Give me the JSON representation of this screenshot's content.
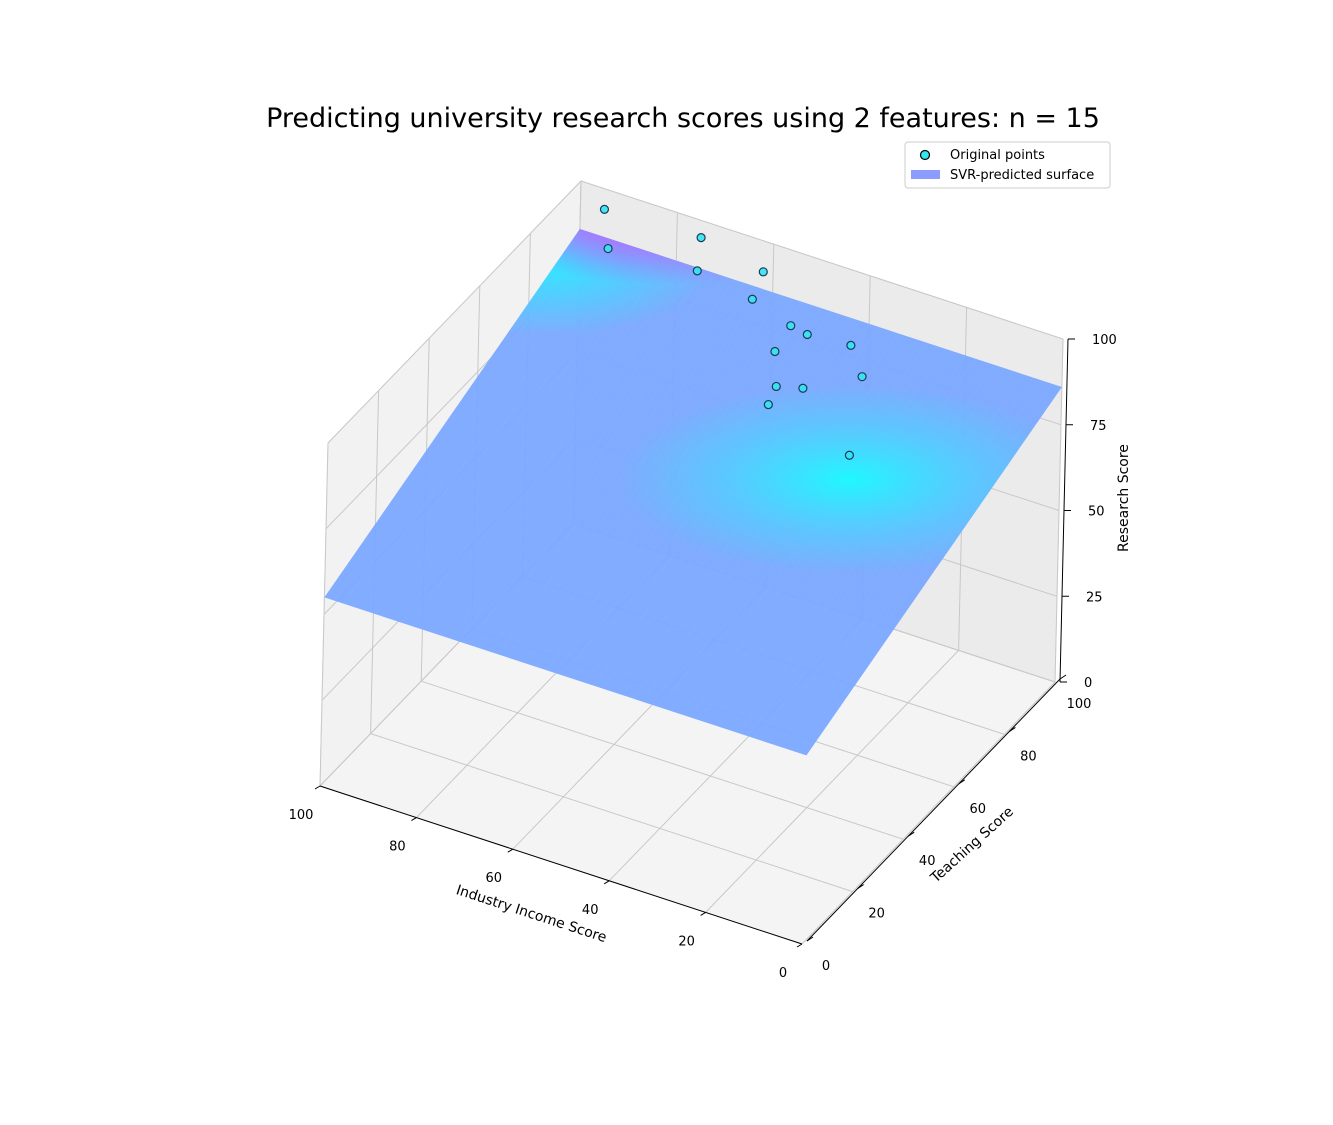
{
  "chart_data": {
    "type": "scatter",
    "title": "Predicting university research scores using 2 features: n = 15",
    "xlabel": "Industry Income Score",
    "ylabel": "Teaching Score",
    "zlabel": "Research Score",
    "xlim": [
      0,
      100
    ],
    "ylim": [
      0,
      100
    ],
    "zlim": [
      0,
      100
    ],
    "xticks": [
      "0",
      "20",
      "40",
      "60",
      "80",
      "100"
    ],
    "yticks": [
      "0",
      "20",
      "40",
      "60",
      "80",
      "100"
    ],
    "zticks": [
      "0",
      "25",
      "50",
      "75",
      "100"
    ],
    "grid": true,
    "legend_position": "top-right",
    "colormap": "cool",
    "point_color": "#33e6f0",
    "surface_color_low": "#66a3ff",
    "surface_color_high": "#ff1aff",
    "series": [
      {
        "name": "Original points",
        "x": [
          93,
          88,
          75,
          68,
          60,
          55,
          49,
          42,
          35,
          30,
          44,
          40,
          39,
          34,
          18
        ],
        "y": [
          96,
          88,
          100,
          85,
          96,
          82,
          86,
          79,
          83,
          78,
          70,
          63,
          58,
          62,
          50
        ],
        "z": [
          98,
          95,
          95,
          100,
          95,
          100,
          92,
          98,
          95,
          92,
          99,
          96,
          95,
          99,
          96
        ]
      },
      {
        "name": "SVR-predicted surface",
        "type": "surface",
        "corners_z": {
          "x0_y0": 55,
          "x100_y0": 55,
          "x100_y100": 86,
          "x0_y100": 86
        },
        "peak": {
          "x": 90,
          "y": 97,
          "z": 100
        },
        "cyan_region": {
          "x": 19,
          "y": 52,
          "z": 87
        }
      }
    ]
  }
}
